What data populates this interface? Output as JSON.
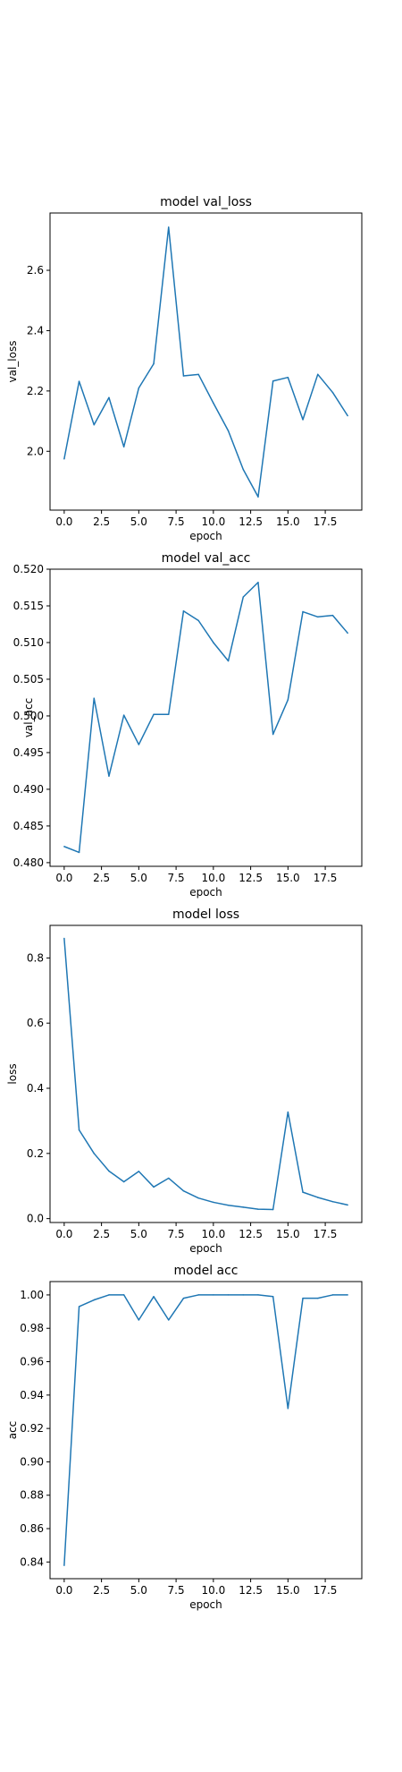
{
  "line_color": "#1f77b4",
  "chart_data": [
    {
      "type": "line",
      "title": "model val_loss",
      "xlabel": "epoch",
      "ylabel": "val_loss",
      "grid": false,
      "xlim": [
        -0.95,
        19.95
      ],
      "ylim": [
        1.805,
        2.79
      ],
      "x_ticks": [
        0.0,
        2.5,
        5.0,
        7.5,
        10.0,
        12.5,
        15.0,
        17.5
      ],
      "x_tick_labels": [
        "0.0",
        "2.5",
        "5.0",
        "7.5",
        "10.0",
        "12.5",
        "15.0",
        "17.5"
      ],
      "y_ticks": [
        2.0,
        2.2,
        2.4,
        2.6
      ],
      "y_tick_labels": [
        "2.0",
        "2.2",
        "2.4",
        "2.6"
      ],
      "series": [
        {
          "x": [
            0,
            1,
            2,
            3,
            4,
            5,
            6,
            7,
            8,
            9,
            10,
            11,
            12,
            13,
            14,
            15,
            16,
            17,
            18,
            19
          ],
          "values": [
            1.975,
            2.232,
            2.088,
            2.178,
            2.015,
            2.21,
            2.29,
            2.743,
            2.25,
            2.255,
            2.16,
            2.068,
            1.94,
            1.849,
            2.233,
            2.245,
            2.105,
            2.255,
            2.195,
            2.118
          ]
        }
      ]
    },
    {
      "type": "line",
      "title": "model val_acc",
      "xlabel": "epoch",
      "ylabel": "val_acc",
      "grid": false,
      "xlim": [
        -0.95,
        19.95
      ],
      "ylim": [
        0.4795,
        0.52
      ],
      "x_ticks": [
        0.0,
        2.5,
        5.0,
        7.5,
        10.0,
        12.5,
        15.0,
        17.5
      ],
      "x_tick_labels": [
        "0.0",
        "2.5",
        "5.0",
        "7.5",
        "10.0",
        "12.5",
        "15.0",
        "17.5"
      ],
      "y_ticks": [
        0.48,
        0.485,
        0.49,
        0.495,
        0.5,
        0.505,
        0.51,
        0.515,
        0.52
      ],
      "y_tick_labels": [
        "0.480",
        "0.485",
        "0.490",
        "0.495",
        "0.500",
        "0.505",
        "0.510",
        "0.515",
        "0.520"
      ],
      "series": [
        {
          "x": [
            0,
            1,
            2,
            3,
            4,
            5,
            6,
            7,
            8,
            9,
            10,
            11,
            12,
            13,
            14,
            15,
            16,
            17,
            18,
            19
          ],
          "values": [
            0.4822,
            0.4814,
            0.5024,
            0.4918,
            0.5001,
            0.4961,
            0.5002,
            0.5002,
            0.5143,
            0.513,
            0.51,
            0.5075,
            0.5162,
            0.5182,
            0.4975,
            0.5022,
            0.5142,
            0.5135,
            0.5137,
            0.5113
          ]
        }
      ]
    },
    {
      "type": "line",
      "title": "model loss",
      "xlabel": "epoch",
      "ylabel": "loss",
      "grid": false,
      "xlim": [
        -0.95,
        19.95
      ],
      "ylim": [
        -0.012,
        0.9
      ],
      "x_ticks": [
        0.0,
        2.5,
        5.0,
        7.5,
        10.0,
        12.5,
        15.0,
        17.5
      ],
      "x_tick_labels": [
        "0.0",
        "2.5",
        "5.0",
        "7.5",
        "10.0",
        "12.5",
        "15.0",
        "17.5"
      ],
      "y_ticks": [
        0.0,
        0.2,
        0.4,
        0.6,
        0.8
      ],
      "y_tick_labels": [
        "0.0",
        "0.2",
        "0.4",
        "0.6",
        "0.8"
      ],
      "series": [
        {
          "x": [
            0,
            1,
            2,
            3,
            4,
            5,
            6,
            7,
            8,
            9,
            10,
            11,
            12,
            13,
            14,
            15,
            16,
            17,
            18,
            19
          ],
          "values": [
            0.86,
            0.272,
            0.2,
            0.146,
            0.113,
            0.145,
            0.097,
            0.124,
            0.085,
            0.063,
            0.05,
            0.041,
            0.035,
            0.029,
            0.028,
            0.327,
            0.081,
            0.065,
            0.052,
            0.042
          ]
        }
      ]
    },
    {
      "type": "line",
      "title": "model acc",
      "xlabel": "epoch",
      "ylabel": "acc",
      "grid": false,
      "xlim": [
        -0.95,
        19.95
      ],
      "ylim": [
        0.83,
        1.008
      ],
      "x_ticks": [
        0.0,
        2.5,
        5.0,
        7.5,
        10.0,
        12.5,
        15.0,
        17.5
      ],
      "x_tick_labels": [
        "0.0",
        "2.5",
        "5.0",
        "7.5",
        "10.0",
        "12.5",
        "15.0",
        "17.5"
      ],
      "y_ticks": [
        0.84,
        0.86,
        0.88,
        0.9,
        0.92,
        0.94,
        0.96,
        0.98,
        1.0
      ],
      "y_tick_labels": [
        "0.84",
        "0.86",
        "0.88",
        "0.90",
        "0.92",
        "0.94",
        "0.96",
        "0.98",
        "1.00"
      ],
      "series": [
        {
          "x": [
            0,
            1,
            2,
            3,
            4,
            5,
            6,
            7,
            8,
            9,
            10,
            11,
            12,
            13,
            14,
            15,
            16,
            17,
            18,
            19
          ],
          "values": [
            0.838,
            0.993,
            0.997,
            1.0,
            1.0,
            0.985,
            0.999,
            0.985,
            0.998,
            1.0,
            1.0,
            1.0,
            1.0,
            1.0,
            0.999,
            0.932,
            0.998,
            0.998,
            1.0,
            1.0
          ]
        }
      ]
    }
  ]
}
